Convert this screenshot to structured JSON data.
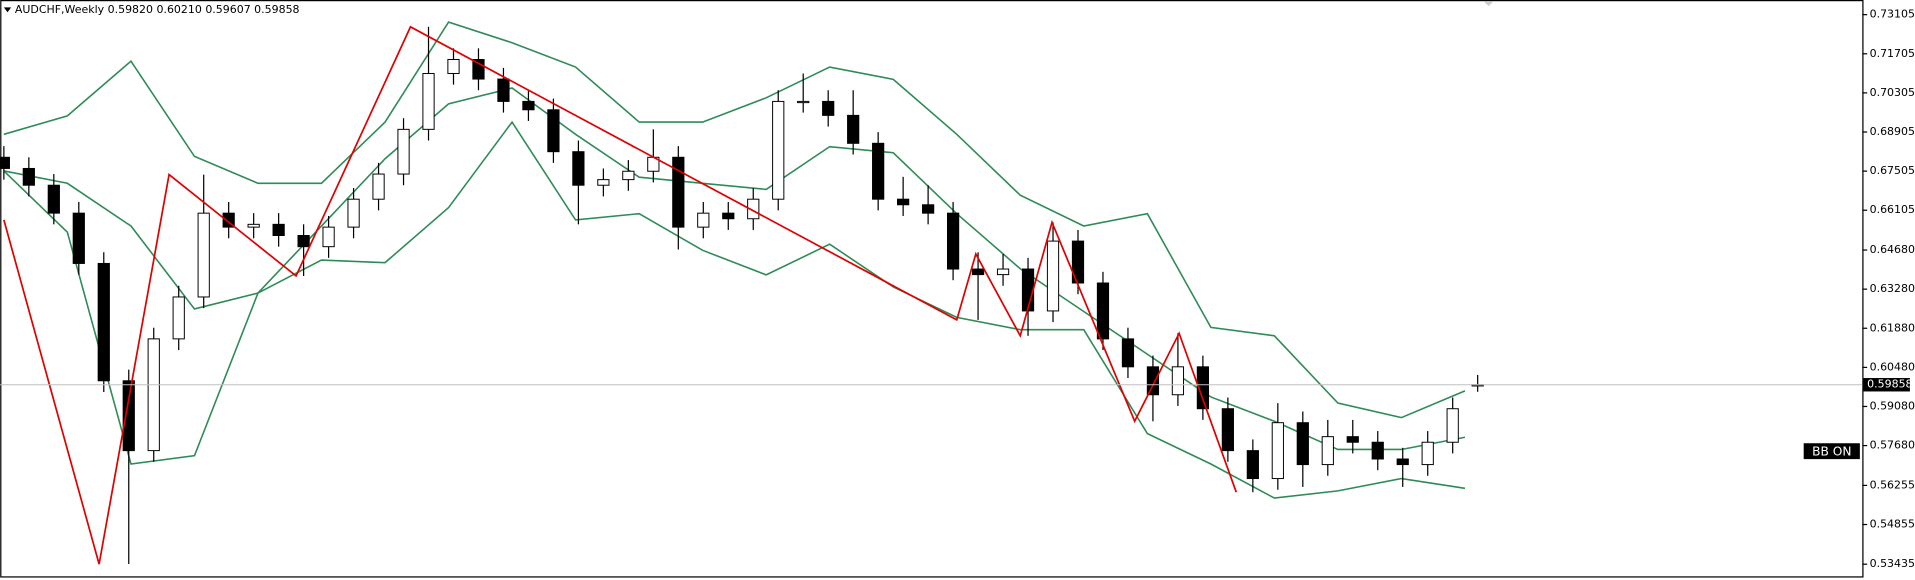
{
  "chart_data": {
    "type": "candlestick",
    "title": "AUDCHF,Weekly",
    "ohlc_text": "0.59820 0.60210 0.59607 0.59858",
    "open": [
      0.68,
      0.676,
      0.67,
      0.66,
      0.642,
      0.6,
      0.575,
      0.615,
      0.63,
      0.66,
      0.655,
      0.656,
      0.652,
      0.648,
      0.655,
      0.665,
      0.674,
      0.69,
      0.71,
      0.715,
      0.708,
      0.7,
      0.697,
      0.682,
      0.67,
      0.672,
      0.675,
      0.68,
      0.655,
      0.66,
      0.658,
      0.665,
      0.7,
      0.7,
      0.695,
      0.685,
      0.665,
      0.663,
      0.66,
      0.64,
      0.638,
      0.64,
      0.625,
      0.65,
      0.635,
      0.615,
      0.605,
      0.595,
      0.605,
      0.59,
      0.575,
      0.565,
      0.585,
      0.57,
      0.58,
      0.578,
      0.572,
      0.57,
      0.578,
      0.5982
    ],
    "high": [
      0.684,
      0.68,
      0.674,
      0.664,
      0.646,
      0.604,
      0.619,
      0.634,
      0.6738,
      0.664,
      0.66,
      0.66,
      0.656,
      0.659,
      0.669,
      0.678,
      0.694,
      0.7267,
      0.719,
      0.719,
      0.712,
      0.704,
      0.701,
      0.686,
      0.676,
      0.679,
      0.69,
      0.684,
      0.664,
      0.664,
      0.669,
      0.704,
      0.71,
      0.704,
      0.704,
      0.689,
      0.673,
      0.67,
      0.664,
      0.646,
      0.6454,
      0.644,
      0.6567,
      0.654,
      0.639,
      0.619,
      0.609,
      0.617,
      0.609,
      0.594,
      0.579,
      0.592,
      0.589,
      0.586,
      0.586,
      0.582,
      0.576,
      0.582,
      0.594,
      0.6021
    ],
    "low": [
      0.672,
      0.666,
      0.656,
      0.638,
      0.596,
      0.5344,
      0.571,
      0.611,
      0.626,
      0.651,
      0.651,
      0.648,
      0.6375,
      0.644,
      0.651,
      0.661,
      0.67,
      0.686,
      0.706,
      0.704,
      0.696,
      0.693,
      0.678,
      0.656,
      0.666,
      0.668,
      0.671,
      0.647,
      0.651,
      0.654,
      0.654,
      0.661,
      0.696,
      0.691,
      0.681,
      0.661,
      0.659,
      0.656,
      0.636,
      0.6218,
      0.634,
      0.6161,
      0.621,
      0.631,
      0.611,
      0.601,
      0.5855,
      0.591,
      0.586,
      0.571,
      0.5601,
      0.561,
      0.562,
      0.566,
      0.574,
      0.568,
      0.562,
      0.566,
      0.574,
      0.59607
    ],
    "close": [
      0.676,
      0.67,
      0.66,
      0.642,
      0.6,
      0.575,
      0.615,
      0.63,
      0.66,
      0.655,
      0.656,
      0.652,
      0.648,
      0.655,
      0.665,
      0.674,
      0.69,
      0.71,
      0.715,
      0.708,
      0.7,
      0.697,
      0.682,
      0.67,
      0.672,
      0.675,
      0.68,
      0.655,
      0.66,
      0.658,
      0.665,
      0.7,
      0.7,
      0.695,
      0.685,
      0.665,
      0.663,
      0.66,
      0.64,
      0.638,
      0.64,
      0.625,
      0.65,
      0.635,
      0.615,
      0.605,
      0.595,
      0.605,
      0.59,
      0.575,
      0.565,
      0.585,
      0.57,
      0.58,
      0.578,
      0.572,
      0.57,
      0.578,
      0.59,
      0.59858
    ],
    "band_color": "#2e8b57",
    "band_bars": [
      0,
      10,
      20,
      30,
      40,
      50,
      60,
      70,
      80,
      90,
      100,
      110,
      120,
      130,
      140,
      150,
      160,
      170,
      180,
      190,
      200,
      210,
      220,
      230
    ],
    "upper_band": [
      0.6882,
      0.6948,
      0.7144,
      0.6803,
      0.6707,
      0.6707,
      0.6926,
      0.7284,
      0.721,
      0.7123,
      0.6926,
      0.6926,
      0.7013,
      0.7123,
      0.7079,
      0.6882,
      0.6664,
      0.6554,
      0.6598,
      0.6191,
      0.6161,
      0.592,
      0.5868,
      0.5964
    ],
    "middle_band": [
      0.6751,
      0.6707,
      0.6554,
      0.6257,
      0.6314,
      0.6554,
      0.6795,
      0.6991,
      0.7048,
      0.6882,
      0.6729,
      0.6707,
      0.6685,
      0.6838,
      0.6816,
      0.6598,
      0.6401,
      0.6248,
      0.6095,
      0.5942,
      0.5855,
      0.5754,
      0.5754,
      0.5798
    ],
    "lower_band": [
      0.6751,
      0.6532,
      0.5702,
      0.5732,
      0.6314,
      0.6432,
      0.6423,
      0.662,
      0.6926,
      0.6576,
      0.6598,
      0.6467,
      0.6379,
      0.6489,
      0.6336,
      0.6227,
      0.6183,
      0.6183,
      0.5811,
      0.5702,
      0.558,
      0.5606,
      0.565,
      0.5615
    ],
    "zigzag": {
      "color": "#e00000",
      "bars": [
        0,
        15,
        26,
        46,
        64,
        150,
        153,
        160,
        165,
        178,
        185,
        194
      ],
      "values": [
        0.6576,
        0.53435,
        0.6738,
        0.6375,
        0.7267,
        0.6218,
        0.6454,
        0.6161,
        0.6567,
        0.5855,
        0.617,
        0.5601
      ]
    },
    "ylim": [
      0.53,
      0.7363
    ],
    "yticks": [
      0.73105,
      0.71705,
      0.70305,
      0.68905,
      0.67505,
      0.66105,
      {
        "value": 0.6468,
        "label": "0.64680"
      },
      {
        "value": 0.6328,
        "label": "0.63280"
      },
      {
        "value": 0.6188,
        "label": "0.61880"
      },
      {
        "value": 0.6048,
        "label": "0.60480"
      },
      {
        "value": 0.5908,
        "label": "0.59080"
      },
      {
        "value": 0.5768,
        "label": "0.57680"
      },
      0.56255,
      0.54855,
      0.53435
    ],
    "last_price": 0.59858,
    "button": "BB ON"
  }
}
